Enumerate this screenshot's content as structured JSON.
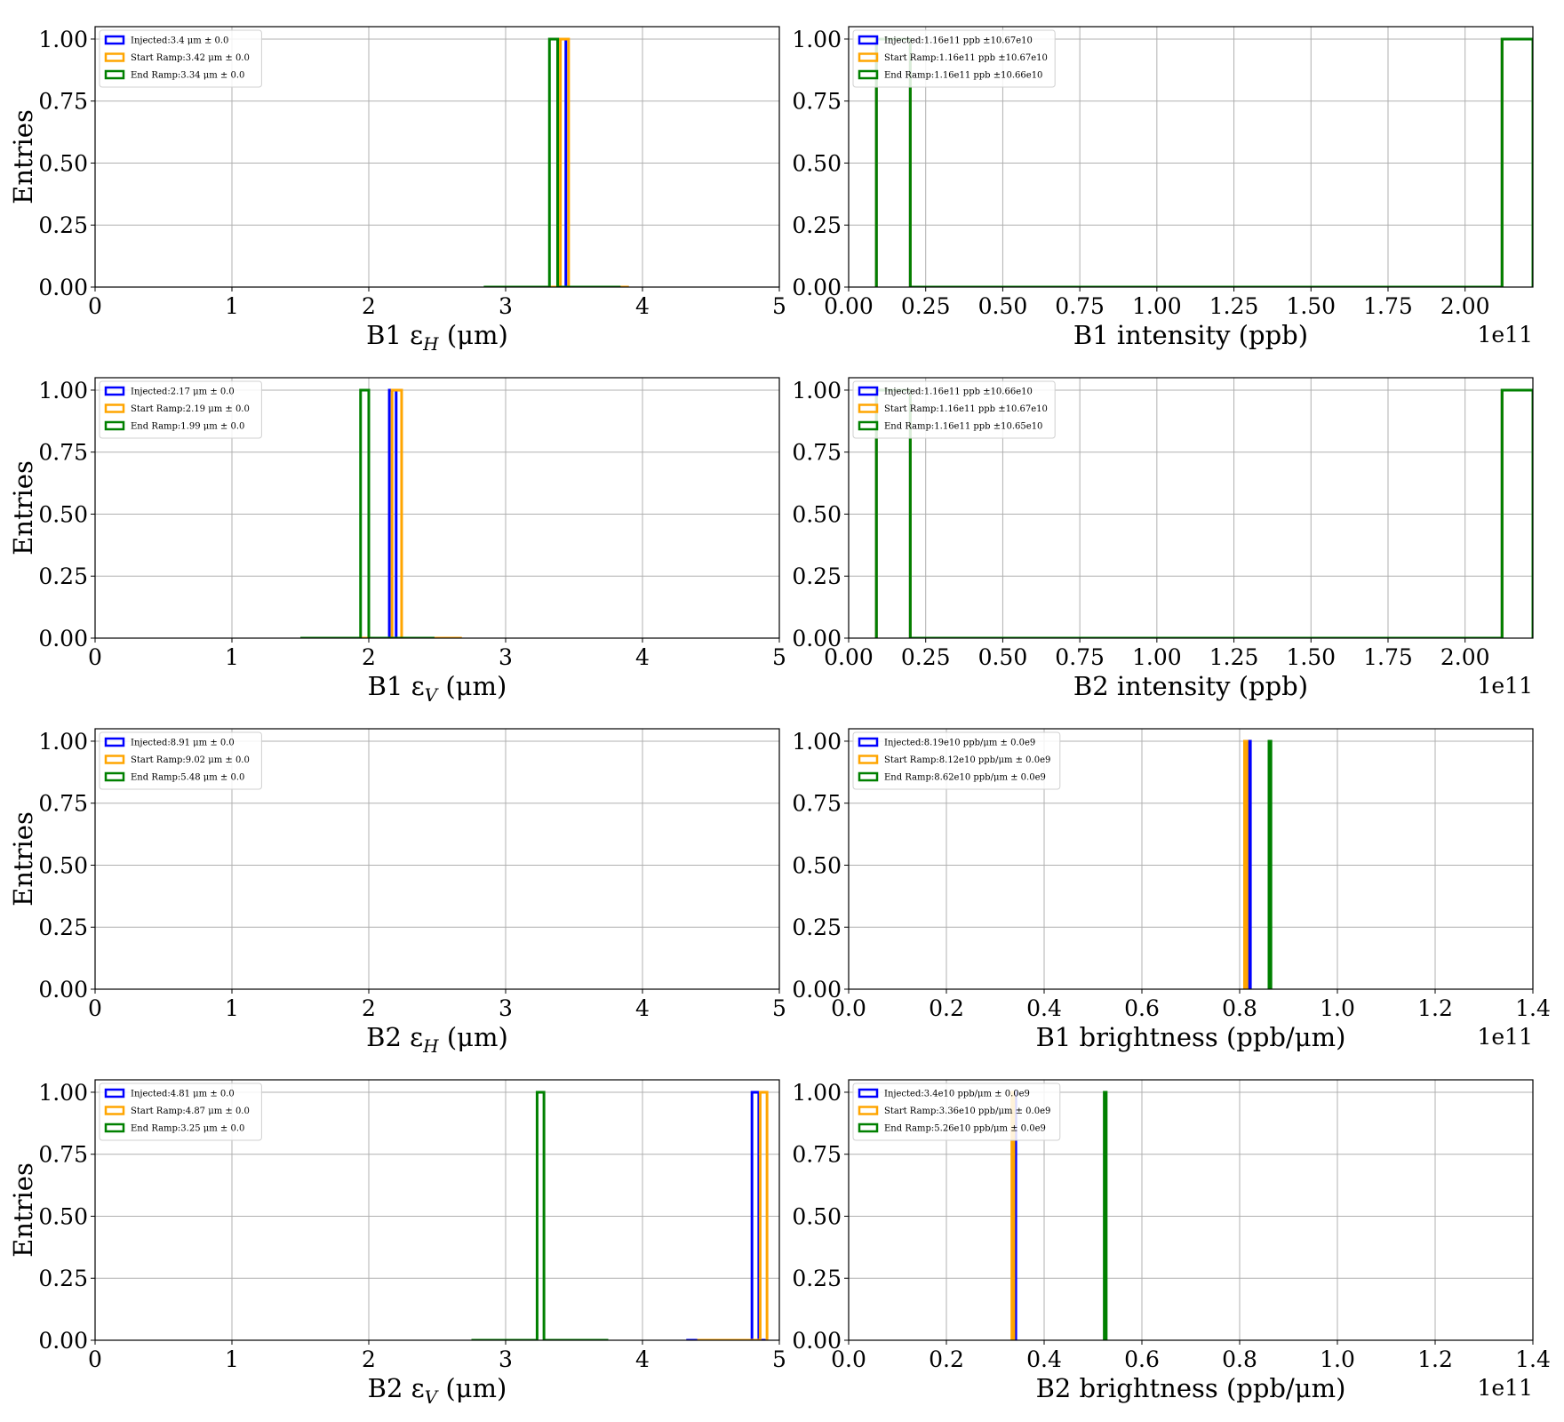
{
  "colors": {
    "Injected": "#0000ff",
    "Start Ramp": "#ffa500",
    "End Ramp": "#008000",
    "grid": "#b0b0b0"
  },
  "chart_data": [
    {
      "id": "b1-eh",
      "type": "histogram",
      "xlabel": "B1 εH (μm)",
      "ylabel": "Entries",
      "xlim": [
        0,
        5
      ],
      "ylim": [
        0,
        1.05
      ],
      "xticks": [
        0,
        1,
        2,
        3,
        4,
        5
      ],
      "xtick_labels": [
        "0",
        "1",
        "2",
        "3",
        "4",
        "5"
      ],
      "yticks": [
        0,
        0.25,
        0.5,
        0.75,
        1.0
      ],
      "ytick_labels": [
        "0.00",
        "0.25",
        "0.50",
        "0.75",
        "1.00"
      ],
      "offset_text": "",
      "series": [
        {
          "name": "Injected",
          "bins": [
            [
              2.9,
              3.38,
              0
            ],
            [
              3.38,
              3.44,
              1
            ],
            [
              3.44,
              3.9,
              0
            ]
          ]
        },
        {
          "name": "Start Ramp",
          "bins": [
            [
              2.92,
              3.4,
              0
            ],
            [
              3.4,
              3.46,
              1
            ],
            [
              3.46,
              3.9,
              0
            ]
          ]
        },
        {
          "name": "End Ramp",
          "bins": [
            [
              2.84,
              3.32,
              0
            ],
            [
              3.32,
              3.38,
              1
            ],
            [
              3.38,
              3.84,
              0
            ]
          ]
        }
      ],
      "legend": [
        "Injected:3.4 μm ± 0.0",
        "Start Ramp:3.42 μm ± 0.0",
        "End Ramp:3.34 μm ± 0.0"
      ]
    },
    {
      "id": "b1-intensity",
      "type": "histogram",
      "xlabel": "B1 intensity (ppb)",
      "ylabel": "",
      "xlim": [
        0,
        2.22
      ],
      "ylim": [
        0,
        1.05
      ],
      "xticks": [
        0,
        0.25,
        0.5,
        0.75,
        1.0,
        1.25,
        1.5,
        1.75,
        2.0
      ],
      "xtick_labels": [
        "0.00",
        "0.25",
        "0.50",
        "0.75",
        "1.00",
        "1.25",
        "1.50",
        "1.75",
        "2.00"
      ],
      "yticks": [
        0,
        0.25,
        0.5,
        0.75,
        1.0
      ],
      "ytick_labels": [
        "0.00",
        "0.25",
        "0.50",
        "0.75",
        "1.00"
      ],
      "offset_text": "1e11",
      "series": [
        {
          "name": "Injected",
          "bins": [
            [
              0.09,
              0.2,
              1
            ],
            [
              0.2,
              2.12,
              0
            ],
            [
              2.12,
              2.22,
              1
            ]
          ]
        },
        {
          "name": "Start Ramp",
          "bins": [
            [
              0.09,
              0.2,
              1
            ],
            [
              0.2,
              2.12,
              0
            ],
            [
              2.12,
              2.22,
              1
            ]
          ]
        },
        {
          "name": "End Ramp",
          "bins": [
            [
              0.09,
              0.2,
              1
            ],
            [
              0.2,
              2.12,
              0
            ],
            [
              2.12,
              2.22,
              1
            ]
          ]
        }
      ],
      "legend": [
        "Injected:1.16e11 ppb ±10.67e10",
        "Start Ramp:1.16e11 ppb ±10.67e10",
        "End Ramp:1.16e11 ppb ±10.66e10"
      ]
    },
    {
      "id": "b1-ev",
      "type": "histogram",
      "xlabel": "B1 εV (μm)",
      "ylabel": "Entries",
      "xlim": [
        0,
        5
      ],
      "ylim": [
        0,
        1.05
      ],
      "xticks": [
        0,
        1,
        2,
        3,
        4,
        5
      ],
      "xtick_labels": [
        "0",
        "1",
        "2",
        "3",
        "4",
        "5"
      ],
      "yticks": [
        0,
        0.25,
        0.5,
        0.75,
        1.0
      ],
      "ytick_labels": [
        "0.00",
        "0.25",
        "0.50",
        "0.75",
        "1.00"
      ],
      "offset_text": "",
      "series": [
        {
          "name": "Injected",
          "bins": [
            [
              1.7,
              2.15,
              0
            ],
            [
              2.15,
              2.2,
              1
            ],
            [
              2.2,
              2.6,
              0
            ]
          ]
        },
        {
          "name": "Start Ramp",
          "bins": [
            [
              1.75,
              2.17,
              0
            ],
            [
              2.17,
              2.24,
              1
            ],
            [
              2.24,
              2.68,
              0
            ]
          ]
        },
        {
          "name": "End Ramp",
          "bins": [
            [
              1.5,
              1.94,
              0
            ],
            [
              1.94,
              2.0,
              1
            ],
            [
              2.0,
              2.48,
              0
            ]
          ]
        }
      ],
      "legend": [
        "Injected:2.17 μm ± 0.0",
        "Start Ramp:2.19 μm ± 0.0",
        "End Ramp:1.99 μm ± 0.0"
      ]
    },
    {
      "id": "b2-intensity",
      "type": "histogram",
      "xlabel": "B2 intensity (ppb)",
      "ylabel": "",
      "xlim": [
        0,
        2.22
      ],
      "ylim": [
        0,
        1.05
      ],
      "xticks": [
        0,
        0.25,
        0.5,
        0.75,
        1.0,
        1.25,
        1.5,
        1.75,
        2.0
      ],
      "xtick_labels": [
        "0.00",
        "0.25",
        "0.50",
        "0.75",
        "1.00",
        "1.25",
        "1.50",
        "1.75",
        "2.00"
      ],
      "yticks": [
        0,
        0.25,
        0.5,
        0.75,
        1.0
      ],
      "ytick_labels": [
        "0.00",
        "0.25",
        "0.50",
        "0.75",
        "1.00"
      ],
      "offset_text": "1e11",
      "series": [
        {
          "name": "Injected",
          "bins": [
            [
              0.09,
              0.2,
              1
            ],
            [
              0.2,
              2.12,
              0
            ],
            [
              2.12,
              2.22,
              1
            ]
          ]
        },
        {
          "name": "Start Ramp",
          "bins": [
            [
              0.09,
              0.2,
              1
            ],
            [
              0.2,
              2.12,
              0
            ],
            [
              2.12,
              2.22,
              1
            ]
          ]
        },
        {
          "name": "End Ramp",
          "bins": [
            [
              0.09,
              0.2,
              1
            ],
            [
              0.2,
              2.12,
              0
            ],
            [
              2.12,
              2.22,
              1
            ]
          ]
        }
      ],
      "legend": [
        "Injected:1.16e11 ppb ±10.66e10",
        "Start Ramp:1.16e11 ppb ±10.67e10",
        "End Ramp:1.16e11 ppb ±10.65e10"
      ]
    },
    {
      "id": "b2-eh",
      "type": "histogram",
      "xlabel": "B2 εH (μm)",
      "ylabel": "Entries",
      "xlim": [
        0,
        5
      ],
      "ylim": [
        0,
        1.05
      ],
      "xticks": [
        0,
        1,
        2,
        3,
        4,
        5
      ],
      "xtick_labels": [
        "0",
        "1",
        "2",
        "3",
        "4",
        "5"
      ],
      "yticks": [
        0,
        0.25,
        0.5,
        0.75,
        1.0
      ],
      "ytick_labels": [
        "0.00",
        "0.25",
        "0.50",
        "0.75",
        "1.00"
      ],
      "offset_text": "",
      "series": [
        {
          "name": "Injected",
          "bins": []
        },
        {
          "name": "Start Ramp",
          "bins": []
        },
        {
          "name": "End Ramp",
          "bins": []
        }
      ],
      "legend": [
        "Injected:8.91 μm ± 0.0",
        "Start Ramp:9.02 μm ± 0.0",
        "End Ramp:5.48 μm ± 0.0"
      ]
    },
    {
      "id": "b1-brightness",
      "type": "histogram",
      "xlabel": "B1 brightness (ppb/μm)",
      "ylabel": "",
      "xlim": [
        0,
        1.4
      ],
      "ylim": [
        0,
        1.05
      ],
      "xticks": [
        0,
        0.2,
        0.4,
        0.6,
        0.8,
        1.0,
        1.2,
        1.4
      ],
      "xtick_labels": [
        "0.0",
        "0.2",
        "0.4",
        "0.6",
        "0.8",
        "1.0",
        "1.2",
        "1.4"
      ],
      "yticks": [
        0,
        0.25,
        0.5,
        0.75,
        1.0
      ],
      "ytick_labels": [
        "0.00",
        "0.25",
        "0.50",
        "0.75",
        "1.00"
      ],
      "offset_text": "1e11",
      "series": [
        {
          "name": "Injected",
          "bins": [
            [
              0.817,
              0.822,
              1
            ]
          ]
        },
        {
          "name": "Start Ramp",
          "bins": [
            [
              0.81,
              0.815,
              1
            ]
          ]
        },
        {
          "name": "End Ramp",
          "bins": [
            [
              0.86,
              0.864,
              1
            ]
          ]
        }
      ],
      "legend": [
        "Injected:8.19e10 ppb/μm ± 0.0e9",
        "Start Ramp:8.12e10 ppb/μm ± 0.0e9",
        "End Ramp:8.62e10 ppb/μm ± 0.0e9"
      ]
    },
    {
      "id": "b2-ev",
      "type": "histogram",
      "xlabel": "B2 εV (μm)",
      "ylabel": "Entries",
      "xlim": [
        0,
        5
      ],
      "ylim": [
        0,
        1.05
      ],
      "xticks": [
        0,
        1,
        2,
        3,
        4,
        5
      ],
      "xtick_labels": [
        "0",
        "1",
        "2",
        "3",
        "4",
        "5"
      ],
      "yticks": [
        0,
        0.25,
        0.5,
        0.75,
        1.0
      ],
      "ytick_labels": [
        "0.00",
        "0.25",
        "0.50",
        "0.75",
        "1.00"
      ],
      "offset_text": "",
      "series": [
        {
          "name": "Injected",
          "bins": [
            [
              4.32,
              4.8,
              0
            ],
            [
              4.8,
              4.85,
              1
            ],
            [
              4.85,
              4.9,
              0
            ]
          ]
        },
        {
          "name": "Start Ramp",
          "bins": [
            [
              4.4,
              4.86,
              0
            ],
            [
              4.86,
              4.91,
              1
            ]
          ]
        },
        {
          "name": "End Ramp",
          "bins": [
            [
              2.75,
              3.23,
              0
            ],
            [
              3.23,
              3.28,
              1
            ],
            [
              3.28,
              3.75,
              0
            ]
          ]
        }
      ],
      "legend": [
        "Injected:4.81 μm ± 0.0",
        "Start Ramp:4.87 μm ± 0.0",
        "End Ramp:3.25 μm ± 0.0"
      ]
    },
    {
      "id": "b2-brightness",
      "type": "histogram",
      "xlabel": "B2 brightness (ppb/μm)",
      "ylabel": "",
      "xlim": [
        0,
        1.4
      ],
      "ylim": [
        0,
        1.05
      ],
      "xticks": [
        0,
        0.2,
        0.4,
        0.6,
        0.8,
        1.0,
        1.2,
        1.4
      ],
      "xtick_labels": [
        "0.0",
        "0.2",
        "0.4",
        "0.6",
        "0.8",
        "1.0",
        "1.2",
        "1.4"
      ],
      "yticks": [
        0,
        0.25,
        0.5,
        0.75,
        1.0
      ],
      "ytick_labels": [
        "0.00",
        "0.25",
        "0.50",
        "0.75",
        "1.00"
      ],
      "offset_text": "1e11",
      "series": [
        {
          "name": "Injected",
          "bins": [
            [
              0.338,
              0.342,
              1
            ]
          ]
        },
        {
          "name": "Start Ramp",
          "bins": [
            [
              0.334,
              0.338,
              1
            ]
          ]
        },
        {
          "name": "End Ramp",
          "bins": [
            [
              0.523,
              0.527,
              1
            ]
          ]
        }
      ],
      "legend": [
        "Injected:3.4e10 ppb/μm ± 0.0e9",
        "Start Ramp:3.36e10 ppb/μm ± 0.0e9",
        "End Ramp:5.26e10 ppb/μm ± 0.0e9"
      ]
    }
  ]
}
